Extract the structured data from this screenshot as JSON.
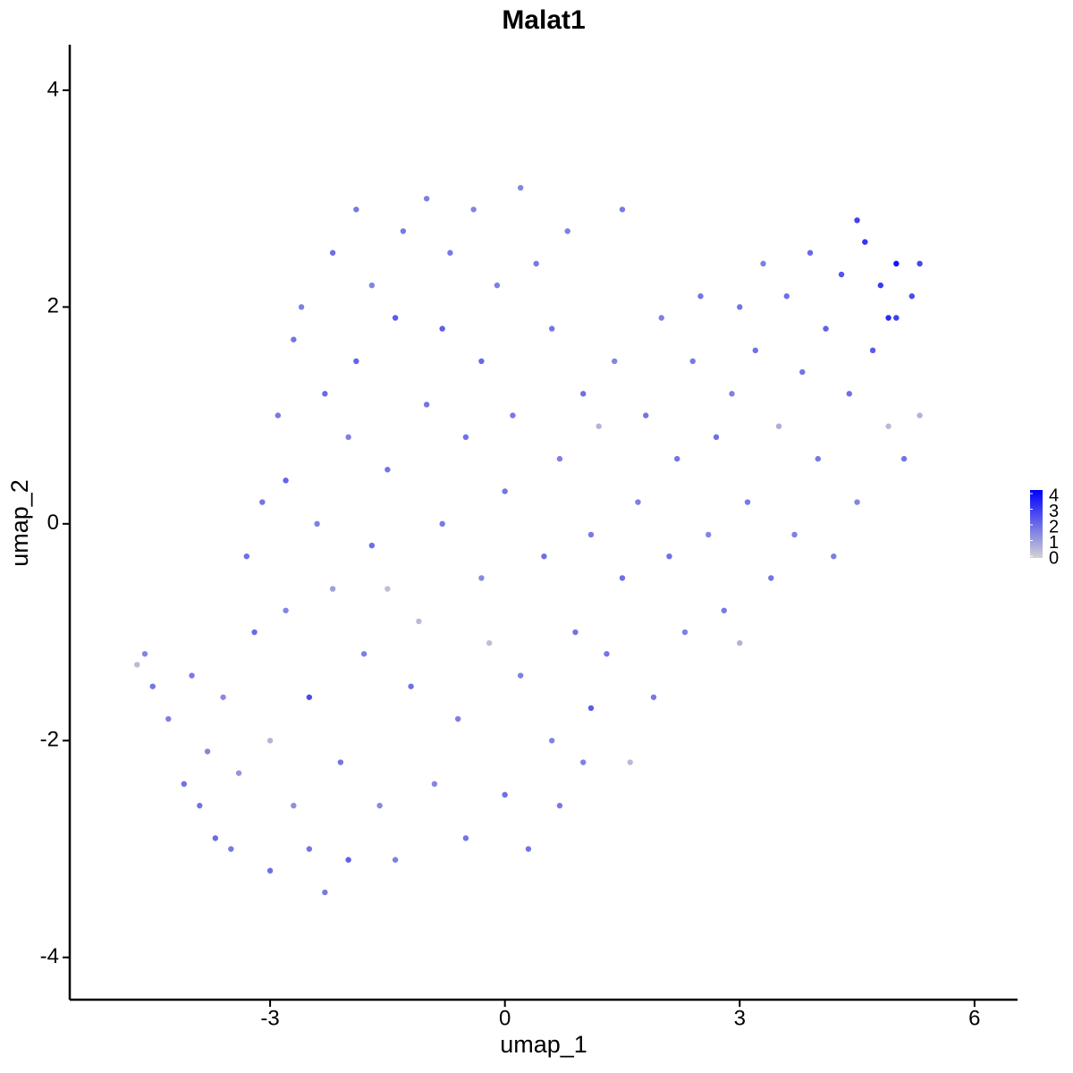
{
  "chart_data": {
    "type": "scatter",
    "title": "Malat1",
    "x_label": "umap_1",
    "y_label": "umap_2",
    "xlim": [
      -5.56,
      6.55
    ],
    "ylim": [
      -4.39,
      4.42
    ],
    "xticks": [
      -3,
      0,
      3,
      6
    ],
    "yticks": [
      -4,
      -2,
      0,
      2,
      4
    ],
    "grid": false,
    "color_low": "#d3d3d3",
    "color_high": "#0000ff",
    "colorbar": {
      "lim": [
        0,
        4
      ],
      "ticks": [
        0,
        1,
        2,
        3,
        4
      ]
    },
    "x": [
      -4.7,
      -4.6,
      -4.5,
      -4.3,
      -4.1,
      -4.0,
      -3.9,
      -3.8,
      -3.7,
      -3.6,
      -3.5,
      -3.4,
      -3.3,
      -3.2,
      -3.1,
      -3.0,
      -3.0,
      -2.9,
      -2.8,
      -2.8,
      -2.7,
      -2.7,
      -2.6,
      -2.5,
      -2.5,
      -2.4,
      -2.3,
      -2.3,
      -2.2,
      -2.2,
      -2.1,
      -2.0,
      -2.0,
      -1.9,
      -1.9,
      -1.8,
      -1.7,
      -1.7,
      -1.6,
      -1.5,
      -1.5,
      -1.4,
      -1.4,
      -1.3,
      -1.2,
      -1.1,
      -1.0,
      -1.0,
      -0.9,
      -0.8,
      -0.8,
      -0.7,
      -0.6,
      -0.5,
      -0.5,
      -0.4,
      -0.3,
      -0.3,
      -0.2,
      -0.1,
      0.0,
      0.0,
      0.1,
      0.2,
      0.2,
      0.3,
      0.4,
      0.5,
      0.6,
      0.6,
      0.7,
      0.7,
      0.8,
      0.9,
      1.0,
      1.0,
      1.1,
      1.1,
      1.2,
      1.3,
      1.4,
      1.5,
      1.5,
      1.6,
      1.7,
      1.8,
      1.9,
      2.0,
      2.1,
      2.2,
      2.3,
      2.4,
      2.5,
      2.6,
      2.7,
      2.8,
      2.9,
      3.0,
      3.0,
      3.1,
      3.2,
      3.3,
      3.4,
      3.5,
      3.6,
      3.7,
      3.8,
      3.9,
      4.0,
      4.1,
      4.2,
      4.3,
      4.4,
      4.5,
      4.5,
      4.6,
      4.7,
      4.8,
      4.9,
      5.0,
      5.0,
      5.1,
      5.2,
      5.3,
      5.3,
      4.9
    ],
    "y": [
      -1.3,
      -1.2,
      -1.5,
      -1.8,
      -2.4,
      -1.4,
      -2.6,
      -2.1,
      -2.9,
      -1.6,
      -3.0,
      -2.3,
      -0.3,
      -1.0,
      0.2,
      -2.0,
      -3.2,
      1.0,
      0.4,
      -0.8,
      1.7,
      -2.6,
      2.0,
      -1.6,
      -3.0,
      0.0,
      1.2,
      -3.4,
      2.5,
      -0.6,
      -2.2,
      0.8,
      -3.1,
      2.9,
      1.5,
      -1.2,
      -0.2,
      2.2,
      -2.6,
      0.5,
      -0.6,
      1.9,
      -3.1,
      2.7,
      -1.5,
      -0.9,
      1.1,
      3.0,
      -2.4,
      0.0,
      1.8,
      2.5,
      -1.8,
      0.8,
      -2.9,
      2.9,
      1.5,
      -0.5,
      -1.1,
      2.2,
      0.3,
      -2.5,
      1.0,
      3.1,
      -1.4,
      -3.0,
      2.4,
      -0.3,
      1.8,
      -2.0,
      0.6,
      -2.6,
      2.7,
      -1.0,
      1.2,
      -2.2,
      -0.1,
      -1.7,
      0.9,
      -1.2,
      1.5,
      -0.5,
      2.9,
      -2.2,
      0.2,
      1.0,
      -1.6,
      1.9,
      -0.3,
      0.6,
      -1.0,
      1.5,
      2.1,
      -0.1,
      0.8,
      -0.8,
      1.2,
      2.0,
      -1.1,
      0.2,
      1.6,
      2.4,
      -0.5,
      0.9,
      2.1,
      -0.1,
      1.4,
      2.5,
      0.6,
      1.8,
      -0.3,
      2.3,
      1.2,
      2.8,
      0.2,
      2.6,
      1.6,
      2.2,
      0.9,
      2.4,
      1.9,
      0.6,
      2.1,
      1.0,
      2.4,
      1.9
    ],
    "values": [
      0.5,
      1.5,
      1.8,
      1.6,
      1.9,
      1.7,
      1.8,
      1.5,
      2.0,
      1.4,
      1.7,
      1.2,
      1.9,
      2.0,
      1.8,
      0.6,
      1.9,
      1.7,
      2.1,
      1.5,
      1.8,
      1.3,
      1.6,
      2.6,
      1.8,
      1.6,
      2.0,
      1.7,
      1.9,
      1.0,
      1.8,
      1.6,
      2.2,
      1.7,
      2.1,
      1.6,
      1.9,
      1.5,
      1.4,
      1.8,
      0.4,
      2.3,
      1.6,
      1.7,
      1.9,
      0.5,
      1.8,
      1.6,
      1.5,
      1.7,
      2.2,
      1.7,
      1.6,
      1.9,
      1.8,
      1.5,
      2.0,
      1.4,
      0.4,
      1.6,
      1.8,
      1.9,
      1.7,
      1.5,
      1.6,
      1.8,
      1.7,
      1.9,
      1.8,
      1.5,
      1.6,
      1.7,
      1.6,
      1.8,
      1.9,
      1.6,
      1.7,
      2.3,
      0.6,
      1.8,
      1.5,
      1.9,
      1.7,
      0.5,
      1.6,
      1.8,
      1.7,
      1.6,
      1.9,
      1.8,
      1.6,
      1.7,
      1.8,
      1.5,
      1.9,
      1.7,
      1.6,
      1.8,
      0.6,
      1.7,
      1.9,
      1.6,
      1.8,
      0.7,
      1.9,
      1.6,
      1.8,
      2.0,
      1.7,
      2.2,
      1.6,
      2.4,
      1.9,
      2.8,
      1.5,
      3.0,
      2.3,
      2.9,
      0.5,
      3.6,
      2.8,
      1.8,
      2.6,
      0.6,
      2.7,
      3.2
    ]
  }
}
